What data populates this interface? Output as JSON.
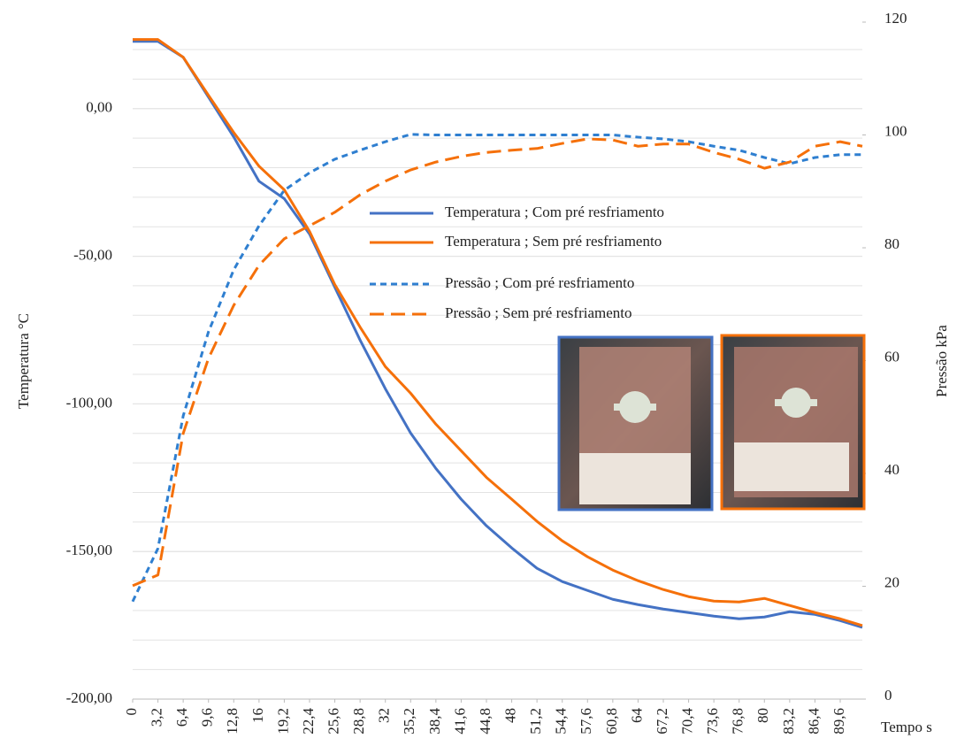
{
  "chart_data": {
    "type": "line",
    "y_label": "Temperatura °C",
    "y2_label": "Pressão kPa",
    "x_label": "Tempo s",
    "x": [
      0,
      3.2,
      6.4,
      9.6,
      12.8,
      16,
      19.2,
      22.4,
      25.6,
      28.8,
      32,
      35.2,
      38.4,
      41.6,
      44.8,
      48,
      51.2,
      54.4,
      57.6,
      60.8,
      64,
      67.2,
      70.4,
      73.6,
      76.8,
      80,
      83.2,
      86.4,
      89.6,
      92.4
    ],
    "xlim": [
      0,
      92.4
    ],
    "xticks": [
      0,
      {
        "value": 3.2,
        "label": "3,2"
      },
      {
        "value": 6.4,
        "label": "6,4"
      },
      {
        "value": 9.6,
        "label": "9,6"
      },
      {
        "value": 12.8,
        "label": "12,8"
      },
      16,
      {
        "value": 19.2,
        "label": "19,2"
      },
      {
        "value": 22.4,
        "label": "22,4"
      },
      {
        "value": 25.6,
        "label": "25,6"
      },
      {
        "value": 28.8,
        "label": "28,8"
      },
      32,
      {
        "value": 35.2,
        "label": "35,2"
      },
      {
        "value": 38.4,
        "label": "38,4"
      },
      {
        "value": 41.6,
        "label": "41,6"
      },
      {
        "value": 44.8,
        "label": "44,8"
      },
      48,
      {
        "value": 51.2,
        "label": "51,2"
      },
      {
        "value": 54.4,
        "label": "54,4"
      },
      {
        "value": 57.6,
        "label": "57,6"
      },
      {
        "value": 60.8,
        "label": "60,8"
      },
      64,
      {
        "value": 67.2,
        "label": "67,2"
      },
      {
        "value": 70.4,
        "label": "70,4"
      },
      {
        "value": 73.6,
        "label": "73,6"
      },
      {
        "value": 76.8,
        "label": "76,8"
      },
      80,
      {
        "value": 83.2,
        "label": "83,2"
      },
      {
        "value": 86.4,
        "label": "86,4"
      },
      {
        "value": 89.6,
        "label": "89,6"
      }
    ],
    "ylim": [
      -200,
      29.3
    ],
    "yticks": [
      {
        "value": 0,
        "label": "0,00"
      },
      {
        "value": -50,
        "label": "-50,00"
      },
      {
        "value": -100,
        "label": "-100,00"
      },
      {
        "value": -150,
        "label": "-150,00"
      },
      {
        "value": -200,
        "label": "-200,00"
      }
    ],
    "grid_lines": [
      20,
      10,
      0,
      -10,
      -20,
      -30,
      -40,
      -50,
      -60,
      -70,
      -80,
      -90,
      -100,
      -110,
      -120,
      -130,
      -140,
      -150,
      -160,
      -170,
      -180,
      -190
    ],
    "y2lim": [
      0,
      120
    ],
    "y2ticks": [
      0,
      20,
      40,
      60,
      80,
      100,
      120
    ],
    "series": [
      {
        "name": "Temperatura ; Com pré resfriamento",
        "color": "#4472c4",
        "line_style": "solid",
        "values": [
          22.8,
          22.8,
          17.4,
          3.9,
          -9.6,
          -24.6,
          -30.5,
          -42.5,
          -60.5,
          -78.4,
          -94.9,
          -109.9,
          -121.9,
          -132.3,
          -141.3,
          -148.8,
          -155.7,
          -160.2,
          -163.2,
          -166.2,
          -168.0,
          -169.5,
          -170.7,
          -171.9,
          -172.8,
          -172.2,
          -170.4,
          -171.3,
          -173.4,
          -175.7
        ]
      },
      {
        "name": "Temperatura ; Sem pré resfriamento",
        "color": "#f5700a",
        "line_style": "solid",
        "values": [
          23.4,
          23.4,
          17.4,
          4.5,
          -8.1,
          -19.5,
          -27.5,
          -41.6,
          -59.6,
          -74.0,
          -87.4,
          -96.4,
          -106.9,
          -115.9,
          -124.9,
          -132.3,
          -139.8,
          -146.4,
          -151.8,
          -156.3,
          -159.9,
          -162.9,
          -165.3,
          -166.8,
          -167.1,
          -165.9,
          -168.3,
          -170.7,
          -172.8,
          -175.1
        ]
      },
      {
        "name": "Pressão ; Com pré resfriamento",
        "color": "#2f7fd0",
        "line_style": "short-dash",
        "axis": "y2",
        "values": [
          17.3,
          26.7,
          50.2,
          65.1,
          76.1,
          83.9,
          90.2,
          93.3,
          95.7,
          97.3,
          98.8,
          100.1,
          100,
          100,
          100,
          100,
          100,
          100,
          100,
          100,
          99.6,
          99.3,
          98.8,
          98.0,
          97.3,
          96.0,
          94.9,
          96.0,
          96.5,
          96.5
        ]
      },
      {
        "name": "Pressão ; Sem pré resfriamento",
        "color": "#f5700a",
        "line_style": "long-dash",
        "axis": "y2",
        "values": [
          20.1,
          22.0,
          47.1,
          60.4,
          69.8,
          76.9,
          81.6,
          83.9,
          86.3,
          89.4,
          91.8,
          93.8,
          95.2,
          96.2,
          96.9,
          97.3,
          97.6,
          98.5,
          99.3,
          99.1,
          98.0,
          98.4,
          98.4,
          96.9,
          95.7,
          94.1,
          95.2,
          98.0,
          98.8,
          98.0
        ]
      }
    ]
  }
}
